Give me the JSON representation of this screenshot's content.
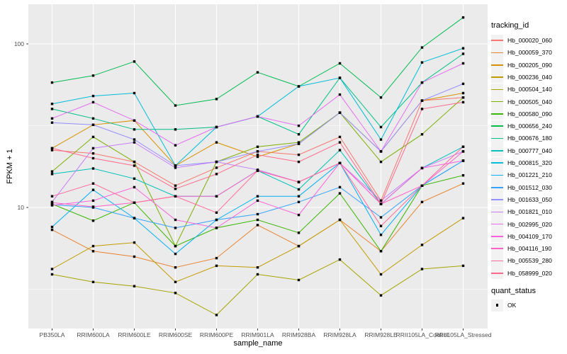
{
  "chart_data": {
    "type": "line",
    "title": "",
    "xlabel": "sample_name",
    "ylabel": "FPKM + 1",
    "y_scale": "log10",
    "ylim": [
      1.8,
      175
    ],
    "grid": true,
    "legend_position": "right",
    "x_categories": [
      "PB350LA",
      "RRIM600LA",
      "RRIM600LE",
      "RRIM600SE",
      "RRIM600PE",
      "RRIM901LA",
      "RRIM928BA",
      "RRIM928LA",
      "RRIM928LE",
      "RRII105LA_Control",
      "RRII105LA_Stressed"
    ],
    "y_ticks": [
      {
        "label": "100",
        "value": 100
      },
      {
        "label": "10",
        "value": 10
      }
    ],
    "y_minor_gridlines": [
      31.62,
      3.162
    ],
    "legend_title": "tracking_id",
    "legend2_title": "quant_status",
    "legend2_items": [
      {
        "label": "OK",
        "marker": "black-square"
      }
    ],
    "marker": {
      "shape": "square",
      "color": "#000000",
      "size": 3.4
    },
    "series": [
      {
        "name": "Hb_000020_060",
        "color": "#F8766D",
        "values": [
          22.4,
          21.4,
          19,
          13.6,
          17.5,
          22,
          21,
          27,
          11,
          45,
          47
        ]
      },
      {
        "name": "Hb_000059_370",
        "color": "#EA8331",
        "values": [
          7.3,
          5.4,
          5.0,
          4.3,
          4.9,
          7.8,
          5.8,
          8.4,
          5.4,
          10.8,
          14
        ]
      },
      {
        "name": "Hb_000205_090",
        "color": "#D89000",
        "values": [
          23,
          32,
          34,
          18,
          25,
          20.4,
          24.5,
          38,
          22,
          45,
          50
        ]
      },
      {
        "name": "Hb_000236_040",
        "color": "#C09B00",
        "values": [
          4.2,
          5.8,
          6.1,
          3.5,
          4.4,
          4.3,
          5.8,
          8.4,
          3.9,
          5.9,
          8.6
        ]
      },
      {
        "name": "Hb_000504_140",
        "color": "#A3A500",
        "values": [
          3.9,
          3.5,
          3.3,
          3.0,
          2.2,
          3.9,
          3.6,
          4.8,
          2.9,
          4.2,
          4.4
        ]
      },
      {
        "name": "Hb_000505_040",
        "color": "#7CAE00",
        "values": [
          16.6,
          27,
          19,
          5.8,
          19,
          23.5,
          25,
          38,
          19,
          28,
          47
        ]
      },
      {
        "name": "Hb_000580_090",
        "color": "#39B600",
        "values": [
          10.5,
          8.3,
          10.7,
          5.8,
          7.5,
          8.4,
          7.0,
          12.2,
          5.4,
          13.6,
          15.7
        ]
      },
      {
        "name": "Hb_000656_240",
        "color": "#00BB4E",
        "values": [
          58,
          64,
          78,
          42,
          46,
          67,
          55,
          76,
          47,
          95,
          145
        ]
      },
      {
        "name": "Hb_000676_180",
        "color": "#00C087",
        "values": [
          40,
          35,
          30,
          30,
          31,
          36,
          28,
          62,
          31,
          58,
          87
        ]
      },
      {
        "name": "Hb_000777_040",
        "color": "#00C0B8",
        "values": [
          16,
          17.3,
          15,
          11.7,
          11.7,
          16.8,
          12.9,
          22.4,
          10.5,
          17.4,
          23.5
        ]
      },
      {
        "name": "Hb_000815_320",
        "color": "#00BCD8",
        "values": [
          43,
          48,
          50,
          18,
          31,
          36,
          55,
          62,
          26,
          77,
          94
        ]
      },
      {
        "name": "Hb_001221_210",
        "color": "#00B0F6",
        "values": [
          7.6,
          12.8,
          8.6,
          5.2,
          8.4,
          11.7,
          11.7,
          18.7,
          6.8,
          13.6,
          19.3
        ]
      },
      {
        "name": "Hb_001512_030",
        "color": "#35A2FF",
        "values": [
          10.4,
          10,
          8.6,
          7.5,
          8.4,
          9.1,
          10.8,
          13.3,
          8.7,
          13.6,
          19.3
        ]
      },
      {
        "name": "Hb_001633_050",
        "color": "#9590FF",
        "values": [
          33,
          32,
          26,
          18,
          19,
          22,
          24.5,
          38,
          22,
          45,
          57
        ]
      },
      {
        "name": "Hb_001821_010",
        "color": "#C77CFF",
        "values": [
          10.8,
          23,
          25,
          17.5,
          19,
          17,
          14.3,
          18.7,
          11,
          17.4,
          22
        ]
      },
      {
        "name": "Hb_002995_020",
        "color": "#E76BF3",
        "values": [
          35,
          44,
          34,
          24,
          31,
          36,
          31.6,
          49,
          22,
          58,
          76
        ]
      },
      {
        "name": "Hb_004109_170",
        "color": "#FA62DB",
        "values": [
          10.3,
          11,
          13.3,
          8.4,
          7.5,
          11,
          9,
          18.7,
          10.5,
          17.4,
          19.3
        ]
      },
      {
        "name": "Hb_004116_190",
        "color": "#FF61C9",
        "values": [
          10.7,
          10.1,
          10.7,
          11.7,
          11.7,
          16.8,
          14.3,
          18.7,
          10.5,
          13.6,
          22
        ]
      },
      {
        "name": "Hb_005539_280",
        "color": "#FF6A98",
        "values": [
          11.7,
          14,
          10.7,
          11.7,
          9.3,
          16.8,
          14.3,
          18.7,
          7.7,
          13.6,
          23.5
        ]
      },
      {
        "name": "Hb_058999_020",
        "color": "#FF688C",
        "values": [
          23,
          20,
          18,
          13,
          16,
          21,
          19,
          25,
          10.5,
          40,
          44
        ]
      }
    ]
  },
  "colors": {
    "panel_bg": "#EBEBEB",
    "grid": "#FFFFFF",
    "tick_mark": "#333333",
    "tick_label": "#4D4D4D",
    "legend_key_bg": "#F2F2F2",
    "marker": "#000000"
  }
}
